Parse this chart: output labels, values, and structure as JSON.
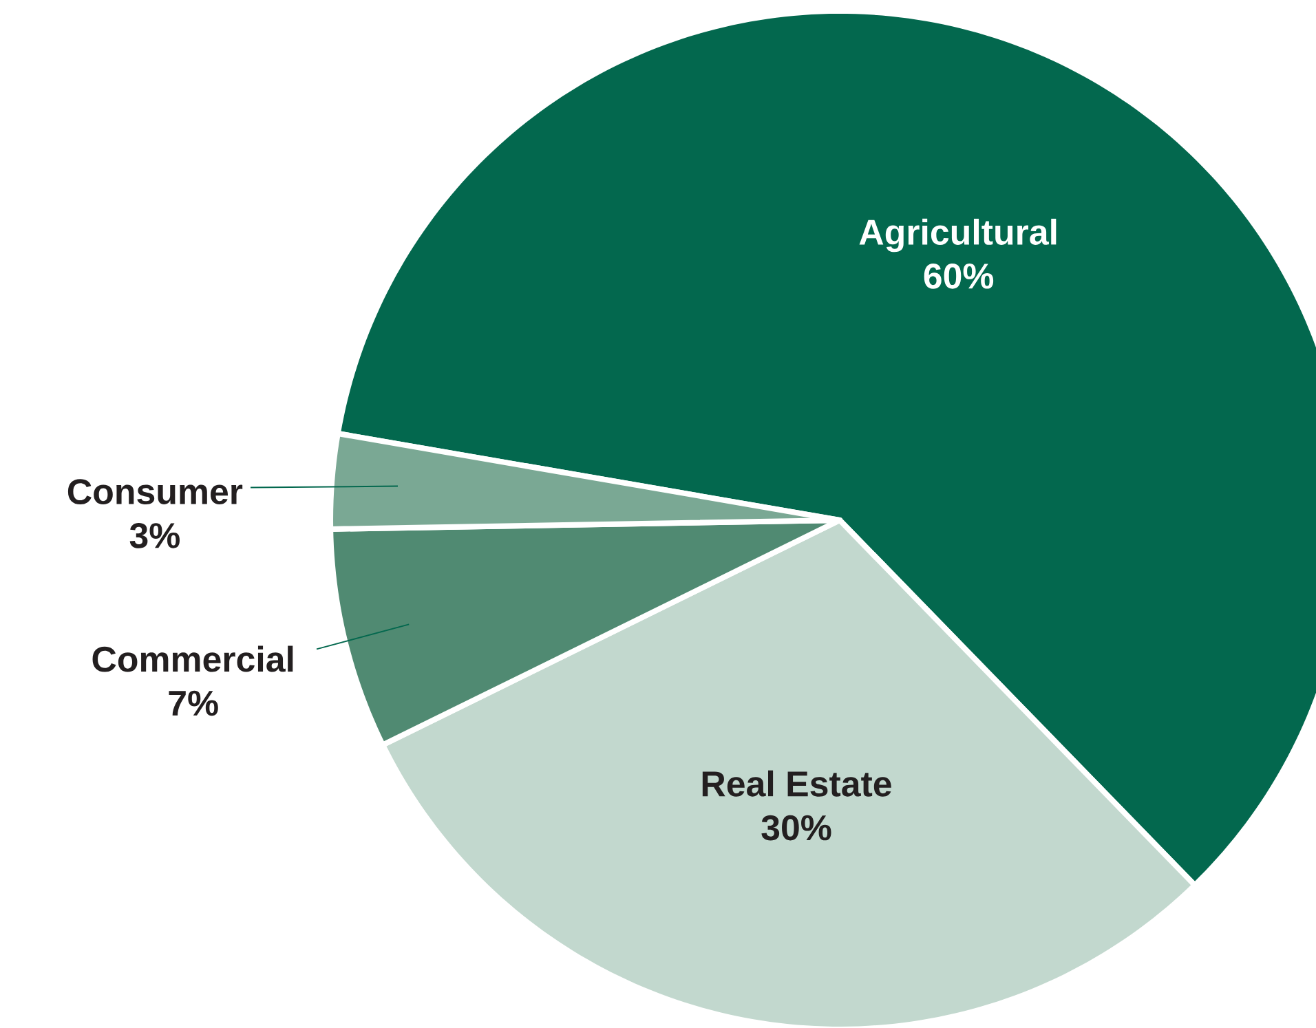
{
  "chart_data": {
    "type": "pie",
    "categories": [
      "Agricultural",
      "Real Estate",
      "Commercial",
      "Consumer"
    ],
    "values": [
      60,
      30,
      7,
      3
    ],
    "value_labels": [
      "60%",
      "30%",
      "7%",
      "3%"
    ],
    "colors": [
      "#03684e",
      "#c2d8ce",
      "#508a72",
      "#7aa894"
    ]
  }
}
